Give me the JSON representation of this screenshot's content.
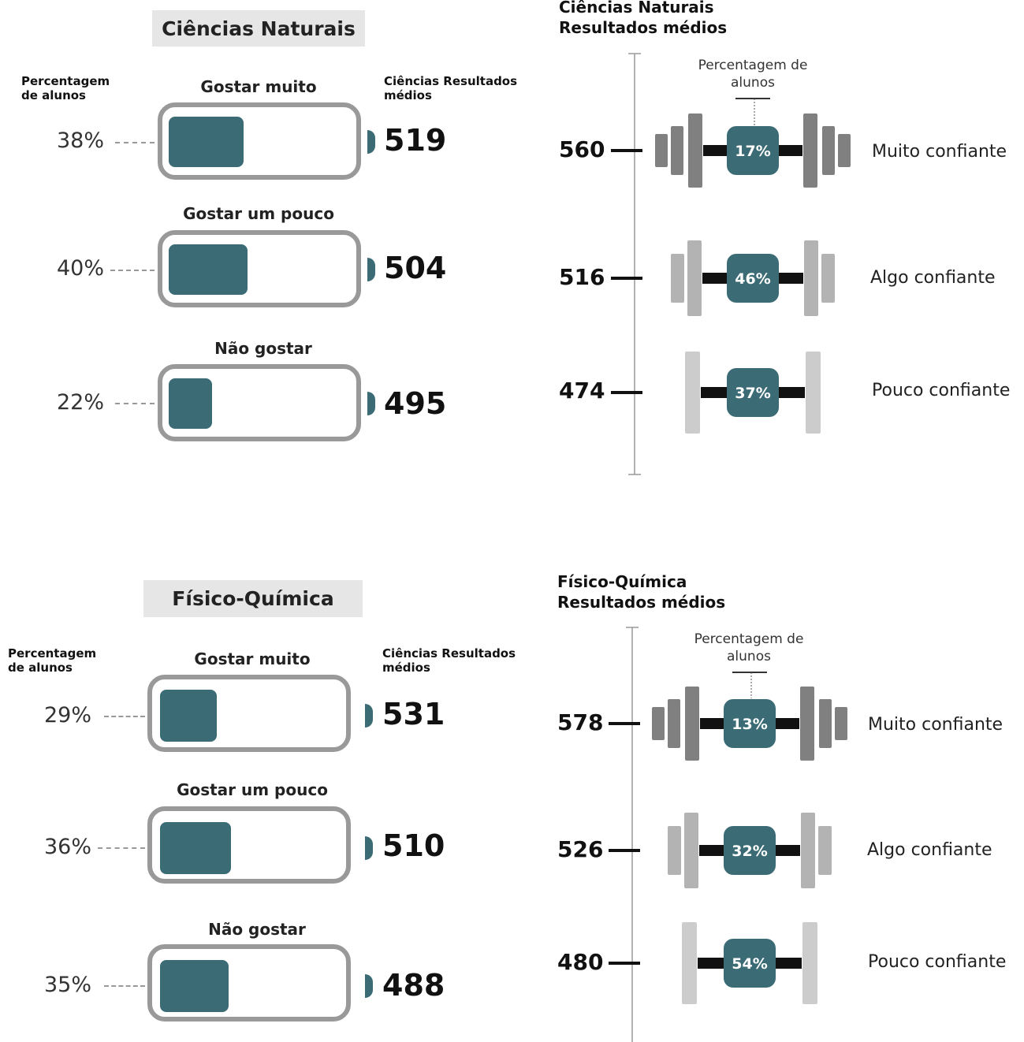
{
  "panels": [
    {
      "title": "Ciências Naturais",
      "left_header_pct": "Percentagem de alunos",
      "left_header_score": "Ciências Resultados médios",
      "right_title_line1": "Ciências Naturais",
      "right_title_line2": "Resultados médios",
      "pct_note": "Percentagem de alunos",
      "liking": [
        {
          "label": "Gostar muito",
          "pct": "38%",
          "score": "519",
          "fill_fraction": 0.38
        },
        {
          "label": "Gostar um pouco",
          "pct": "40%",
          "score": "504",
          "fill_fraction": 0.4
        },
        {
          "label": "Não gostar",
          "pct": "22%",
          "score": "495",
          "fill_fraction": 0.22
        }
      ],
      "confidence": [
        {
          "label": "Muito confiante",
          "score": "560",
          "pct": "17%",
          "plates": 3,
          "plate_color": "#808080"
        },
        {
          "label": "Algo confiante",
          "score": "516",
          "pct": "46%",
          "plates": 2,
          "plate_color": "#b3b3b3"
        },
        {
          "label": "Pouco confiante",
          "score": "474",
          "pct": "37%",
          "plates": 1,
          "plate_color": "#cccccc"
        }
      ]
    },
    {
      "title": "Físico-Química",
      "left_header_pct": "Percentagem de alunos",
      "left_header_score": "Ciências Resultados médios",
      "right_title_line1": "Físico-Química",
      "right_title_line2": "Resultados médios",
      "pct_note": "Percentagem de alunos",
      "liking": [
        {
          "label": "Gostar muito",
          "pct": "29%",
          "score": "531",
          "fill_fraction": 0.29
        },
        {
          "label": "Gostar um pouco",
          "pct": "36%",
          "score": "510",
          "fill_fraction": 0.36
        },
        {
          "label": "Não gostar",
          "pct": "35%",
          "score": "488",
          "fill_fraction": 0.35
        }
      ],
      "confidence": [
        {
          "label": "Muito confiante",
          "score": "578",
          "pct": "13%",
          "plates": 3,
          "plate_color": "#808080"
        },
        {
          "label": "Algo confiante",
          "score": "526",
          "pct": "32%",
          "plates": 2,
          "plate_color": "#b3b3b3"
        },
        {
          "label": "Pouco confiante",
          "score": "480",
          "pct": "54%",
          "plates": 1,
          "plate_color": "#cccccc"
        }
      ]
    }
  ],
  "chart_data": [
    {
      "type": "bar",
      "title": "Ciências Naturais",
      "categories": [
        "Gostar muito",
        "Gostar um pouco",
        "Não gostar"
      ],
      "series": [
        {
          "name": "Percentagem de alunos",
          "values": [
            38,
            40,
            22
          ]
        },
        {
          "name": "Ciências Resultados médios",
          "values": [
            519,
            504,
            495
          ]
        }
      ]
    },
    {
      "type": "bar",
      "title": "Ciências Naturais Resultados médios",
      "categories": [
        "Muito confiante",
        "Algo confiante",
        "Pouco confiante"
      ],
      "series": [
        {
          "name": "Resultados médios",
          "values": [
            560,
            516,
            474
          ]
        },
        {
          "name": "Percentagem de alunos",
          "values": [
            17,
            46,
            37
          ]
        }
      ]
    },
    {
      "type": "bar",
      "title": "Físico-Química",
      "categories": [
        "Gostar muito",
        "Gostar um pouco",
        "Não gostar"
      ],
      "series": [
        {
          "name": "Percentagem de alunos",
          "values": [
            29,
            36,
            35
          ]
        },
        {
          "name": "Ciências Resultados médios",
          "values": [
            531,
            510,
            488
          ]
        }
      ]
    },
    {
      "type": "bar",
      "title": "Físico-Química Resultados médios",
      "categories": [
        "Muito confiante",
        "Algo confiante",
        "Pouco confiante"
      ],
      "series": [
        {
          "name": "Resultados médios",
          "values": [
            578,
            526,
            480
          ]
        },
        {
          "name": "Percentagem de alunos",
          "values": [
            13,
            32,
            54
          ]
        }
      ]
    }
  ]
}
